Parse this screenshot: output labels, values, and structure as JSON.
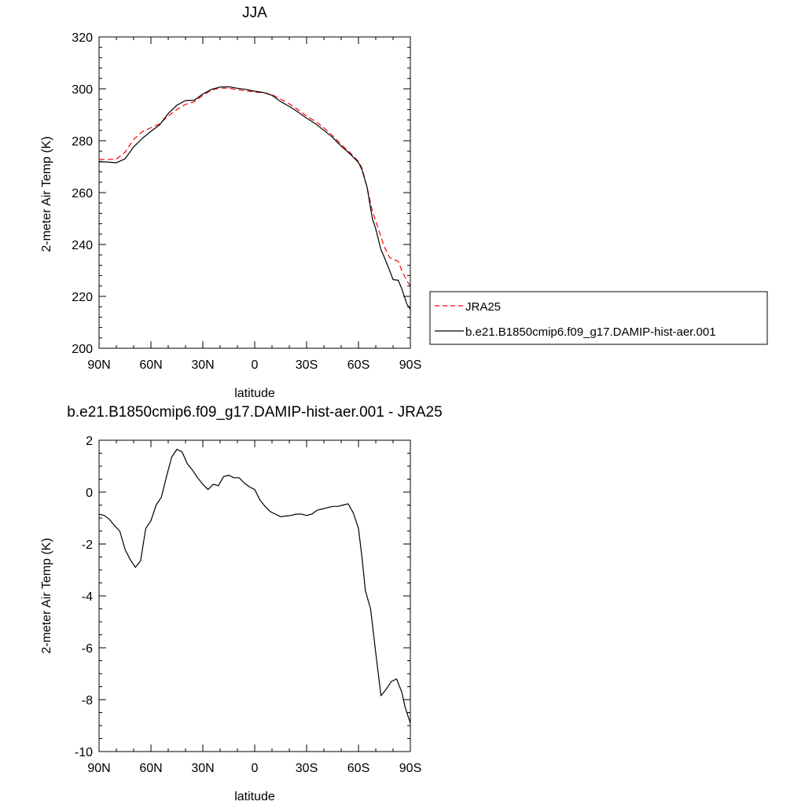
{
  "chart_data": [
    {
      "type": "line",
      "title": "JJA",
      "xlabel": "latitude",
      "ylabel": "2-meter Air Temp (K)",
      "xlim": [
        90,
        -90
      ],
      "ylim": [
        200,
        320
      ],
      "x_ticks": [
        90,
        60,
        30,
        0,
        -30,
        -60,
        -90
      ],
      "x_tick_labels": [
        "90N",
        "60N",
        "30N",
        "0",
        "30S",
        "60S",
        "90S"
      ],
      "y_ticks": [
        200,
        220,
        240,
        260,
        280,
        300,
        320
      ],
      "y_tick_labels": [
        "200",
        "220",
        "240",
        "260",
        "280",
        "300",
        "320"
      ],
      "grid": false,
      "legend": "outside-right",
      "series": [
        {
          "name": "JRA25",
          "color": "#ff0000",
          "dash": "dashed",
          "x": [
            90,
            85,
            80,
            75,
            70,
            65,
            60,
            55,
            50,
            45,
            40,
            35,
            30,
            25,
            20,
            15,
            10,
            5,
            0,
            -5,
            -10,
            -15,
            -20,
            -25,
            -30,
            -35,
            -40,
            -45,
            -50,
            -55,
            -60,
            -62,
            -65,
            -68,
            -70,
            -73,
            -75,
            -78,
            -80,
            -83,
            -85,
            -88,
            -90
          ],
          "y": [
            272.8,
            272.8,
            272.9,
            275.5,
            280.5,
            283.5,
            285,
            286.5,
            289.5,
            292,
            294,
            295,
            297.5,
            299.5,
            300.3,
            300.2,
            299.7,
            299.2,
            298.8,
            298.5,
            297.8,
            296,
            294.2,
            292,
            289.5,
            287.5,
            285,
            282,
            278.5,
            275.5,
            272,
            269.5,
            262,
            253,
            249,
            243,
            239,
            235,
            234.3,
            233.5,
            230,
            226,
            224
          ]
        },
        {
          "name": "b.e21.B1850cmip6.f09_g17.DAMIP-hist-aer.001",
          "color": "#000000",
          "dash": "solid",
          "x": [
            90,
            85,
            80,
            75,
            70,
            65,
            60,
            55,
            50,
            45,
            40,
            35,
            30,
            25,
            20,
            15,
            10,
            5,
            0,
            -5,
            -10,
            -15,
            -20,
            -25,
            -30,
            -35,
            -40,
            -45,
            -50,
            -55,
            -60,
            -62,
            -65,
            -68,
            -70,
            -73,
            -75,
            -78,
            -80,
            -83,
            -85,
            -88,
            -90
          ],
          "y": [
            271.9,
            271.8,
            271.5,
            273,
            277.6,
            280.9,
            283.6,
            286.1,
            290.5,
            293.7,
            295.5,
            295.6,
            298,
            299.8,
            300.7,
            300.8,
            300.2,
            299.8,
            299.1,
            298.6,
            297.5,
            295.1,
            293.2,
            291.1,
            288.7,
            286.6,
            284,
            281.3,
            277.9,
            275,
            271.6,
            268.9,
            262,
            250,
            246,
            238,
            235,
            230,
            226.5,
            226.2,
            223,
            217,
            215
          ]
        }
      ]
    },
    {
      "type": "line",
      "title": "b.e21.B1850cmip6.f09_g17.DAMIP-hist-aer.001 - JRA25",
      "xlabel": "latitude",
      "ylabel": "2-meter Air Temp (K)",
      "xlim": [
        90,
        -90
      ],
      "ylim": [
        -10,
        2
      ],
      "x_ticks": [
        90,
        60,
        30,
        0,
        -30,
        -60,
        -90
      ],
      "x_tick_labels": [
        "90N",
        "60N",
        "30N",
        "0",
        "30S",
        "60S",
        "90S"
      ],
      "y_ticks": [
        -10,
        -8,
        -6,
        -4,
        -2,
        0,
        2
      ],
      "y_tick_labels": [
        "-10",
        "-8",
        "-6",
        "-4",
        "-2",
        "0",
        "2"
      ],
      "grid": false,
      "series": [
        {
          "color": "#000000",
          "dash": "solid",
          "x": [
            90,
            87,
            84,
            81,
            78,
            75,
            72,
            69,
            66,
            63,
            60,
            57,
            54,
            51,
            48,
            45,
            42,
            39,
            36,
            33,
            30,
            27,
            24,
            21,
            18,
            15,
            12,
            9,
            6,
            3,
            0,
            -3,
            -6,
            -9,
            -12,
            -15,
            -18,
            -21,
            -24,
            -27,
            -30,
            -33,
            -36,
            -39,
            -42,
            -45,
            -48,
            -51,
            -54,
            -57,
            -60,
            -62,
            -64,
            -67,
            -70,
            -73,
            -76,
            -79,
            -82,
            -85,
            -87,
            -90
          ],
          "y": [
            -0.85,
            -0.9,
            -1.05,
            -1.3,
            -1.5,
            -2.2,
            -2.6,
            -2.9,
            -2.65,
            -1.4,
            -1.1,
            -0.5,
            -0.2,
            0.6,
            1.35,
            1.65,
            1.55,
            1.1,
            0.85,
            0.55,
            0.3,
            0.1,
            0.3,
            0.25,
            0.6,
            0.65,
            0.55,
            0.55,
            0.35,
            0.2,
            0.1,
            -0.3,
            -0.55,
            -0.75,
            -0.85,
            -0.95,
            -0.92,
            -0.9,
            -0.85,
            -0.85,
            -0.9,
            -0.85,
            -0.7,
            -0.65,
            -0.6,
            -0.55,
            -0.55,
            -0.5,
            -0.45,
            -0.8,
            -1.4,
            -2.5,
            -3.8,
            -4.5,
            -6.2,
            -7.85,
            -7.6,
            -7.3,
            -7.2,
            -7.7,
            -8.3,
            -8.9
          ]
        }
      ]
    }
  ]
}
